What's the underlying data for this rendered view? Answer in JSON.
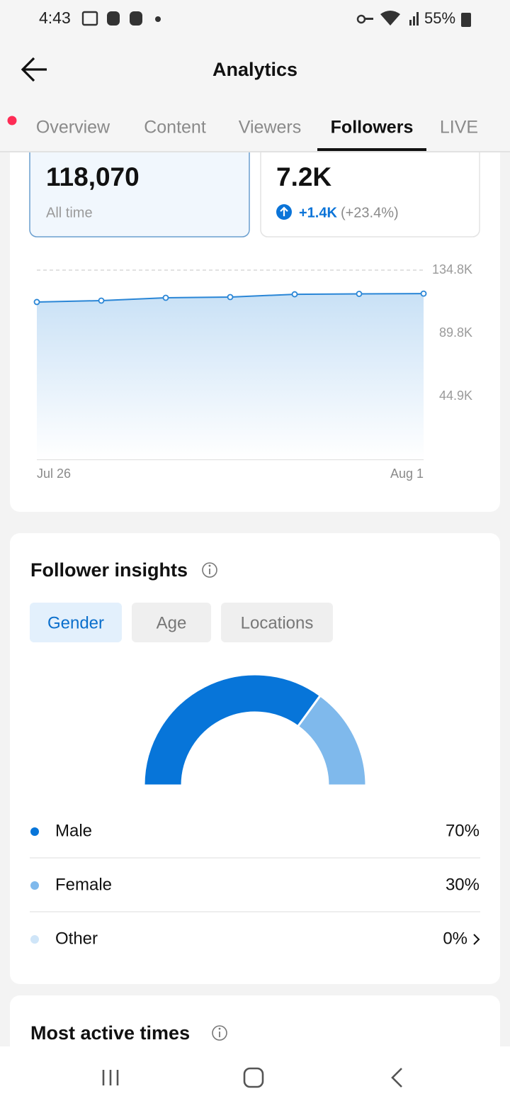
{
  "status_bar": {
    "time": "4:43",
    "battery": "55%"
  },
  "header": {
    "title": "Analytics"
  },
  "tabs": {
    "items": [
      "Overview",
      "Content",
      "Viewers",
      "Followers",
      "LIVE"
    ],
    "active": 3
  },
  "stats": [
    {
      "value": "118,070",
      "label": "All time"
    },
    {
      "value": "7.2K",
      "change": "+1.4K",
      "change_pct": "(+23.4%)"
    }
  ],
  "follower_chart": {
    "type": "line",
    "x": [
      "Jul 26",
      null,
      null,
      null,
      null,
      null,
      "Aug 1"
    ],
    "values": [
      112100,
      113100,
      115100,
      115600,
      117600,
      117900,
      118070
    ],
    "color": "#2a86d6",
    "ylim": [
      0,
      134800
    ],
    "yticks": [
      {
        "value": 44900,
        "label": "44.9K"
      },
      {
        "value": 89800,
        "label": "89.8K"
      },
      {
        "value": 134800,
        "label": "134.8K"
      }
    ],
    "grid": true
  },
  "insights": {
    "title": "Follower insights",
    "filters": [
      "Gender",
      "Age",
      "Locations"
    ],
    "active_filter": 0
  },
  "gender_chart": {
    "type": "donut",
    "categories": [
      "Male",
      "Female",
      "Other"
    ],
    "values": [
      70,
      30,
      0
    ],
    "value_labels": [
      "70%",
      "30%",
      "0%"
    ],
    "colors": [
      "#0775d9",
      "#7fb9ec",
      "#cfe5f8"
    ]
  },
  "next_section": {
    "title": "Most active times"
  }
}
